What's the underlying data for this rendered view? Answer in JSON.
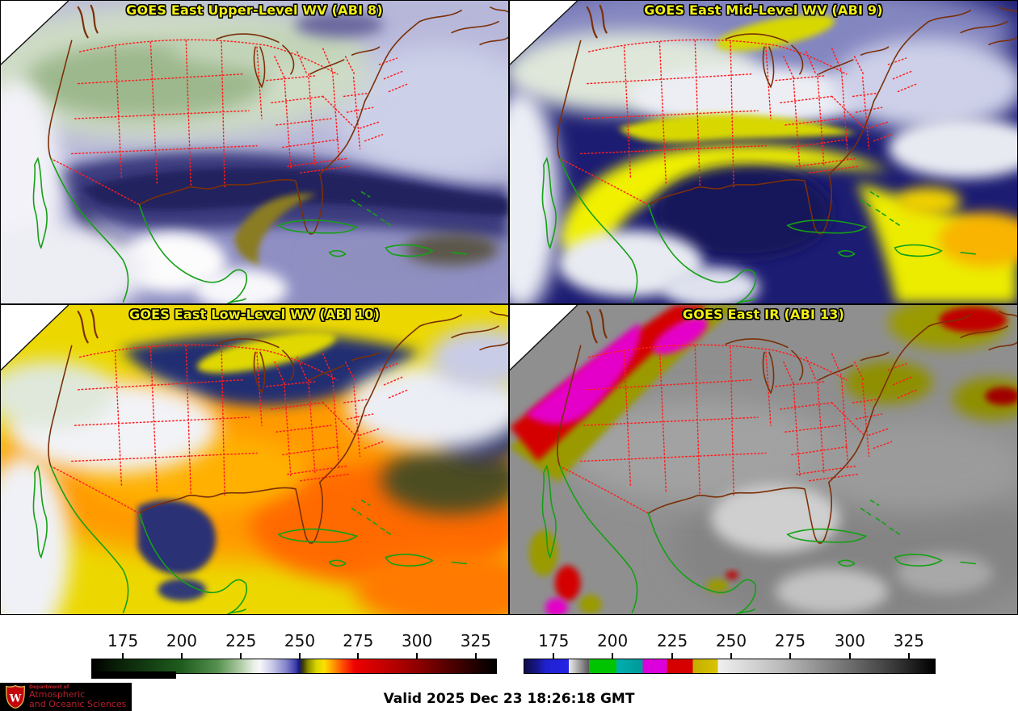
{
  "panels": [
    {
      "id": "abi8",
      "title": "GOES East Upper-Level WV (ABI 8)"
    },
    {
      "id": "abi9",
      "title": "GOES East Mid-Level WV (ABI 9)"
    },
    {
      "id": "abi10",
      "title": "GOES East Low-Level WV (ABI 10)"
    },
    {
      "id": "abi13",
      "title": "GOES East IR (ABI 13)"
    }
  ],
  "colorbars": {
    "tick_labels": [
      "175",
      "200",
      "225",
      "250",
      "275",
      "300",
      "325"
    ],
    "left": {
      "tick_positions_pct": [
        7.8,
        22.3,
        36.9,
        51.4,
        65.8,
        80.3,
        94.8
      ],
      "gradient": [
        "#000000 0%",
        "#081f06 6%",
        "#1e5c1e 22%",
        "#55904e 31%",
        "#aac9a0 36.5%",
        "#e9efe5 40%",
        "#f7f7fb 41.5%",
        "#cacae8 44.5%",
        "#8484ca 48%",
        "#4040b0 50.3%",
        "#16167c 51.3%",
        "#3f3f00 52.2%",
        "#8f8f00 53.5%",
        "#d6d600 55.5%",
        "#ffdf00 57.5%",
        "#ff9500 59.8%",
        "#ff4d00 62%",
        "#ee0000 65%",
        "#c50000 72%",
        "#8f0000 80.5%",
        "#4d0000 89%",
        "#150000 96.5%",
        "#000000 100%"
      ]
    },
    "right": {
      "tick_positions_pct": [
        7.3,
        21.6,
        36.1,
        50.4,
        64.7,
        79.2,
        93.5
      ],
      "gradient": [
        "#0e0e46 0%",
        "#16168a 3%",
        "#2121d2 5.3%",
        "#2424e4 10.8%",
        "#ededed 10.8%",
        "#5a5a5a 15.7%",
        "#00c400 15.7%",
        "#00c400 22.4%",
        "#00b0b0 22.4%",
        "#009898 28.8%",
        "#dc00dc 28.8%",
        "#dc00dc 34.7%",
        "#d60000 34.7%",
        "#d60000 41%",
        "#c4ad00 41%",
        "#d8c400 47.1%",
        "#f0f0f0 47.1%",
        "#bdbdbd 62%",
        "#7d7d7d 76%",
        "#3a3a3a 90%",
        "#000000 100%"
      ]
    }
  },
  "footer": {
    "valid_label": "Valid 2025 Dec 23 18:26:18 GMT"
  },
  "logo": {
    "line1": "Department of",
    "line2": "Atmospheric",
    "line3": "and Oceanic Sciences",
    "crest_letter": "W",
    "brand_red": "#c5050c"
  },
  "colors": {
    "title_yellow": "#f2ef10",
    "state_border_red": "#ff1e1e",
    "coast_green": "#15a015",
    "coast_brown": "#7a3008"
  }
}
